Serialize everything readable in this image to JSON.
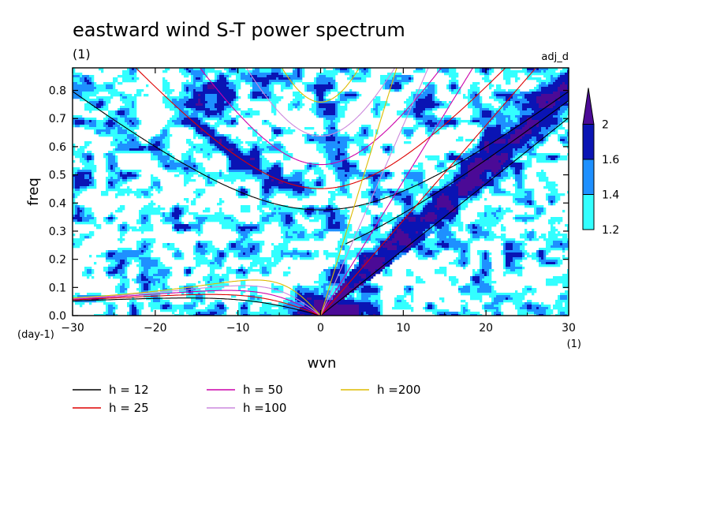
{
  "chart_data": {
    "type": "heatmap",
    "title": "eastward wind S-T power spectrum",
    "subtitle_left": "(1)",
    "subtitle_right": "adj_d",
    "xlabel": "wvn",
    "ylabel": "freq",
    "x_unit": "(1)",
    "y_unit": "(day-1)",
    "xlim": [
      -30,
      30
    ],
    "ylim": [
      0,
      0.88
    ],
    "xticks": [
      -30,
      -20,
      -10,
      0,
      10,
      20,
      30
    ],
    "yticks": [
      0.0,
      0.1,
      0.2,
      0.3,
      0.4,
      0.5,
      0.6,
      0.7,
      0.8
    ],
    "colorbar": {
      "levels": [
        1.2,
        1.4,
        1.6,
        2
      ],
      "colors": [
        "#33ffff",
        "#1e90ff",
        "#0a14b4",
        "#4b0a96"
      ],
      "extend": "max"
    },
    "dispersion_curves": [
      {
        "h": 12,
        "label": "h = 12",
        "color": "#000000"
      },
      {
        "h": 25,
        "label": "h = 25",
        "color": "#dd0000"
      },
      {
        "h": 50,
        "label": "h = 50",
        "color": "#cc00aa"
      },
      {
        "h": 100,
        "label": "h =100",
        "color": "#cc88dd"
      },
      {
        "h": 200,
        "label": "h =200",
        "color": "#ddbb00"
      }
    ]
  }
}
